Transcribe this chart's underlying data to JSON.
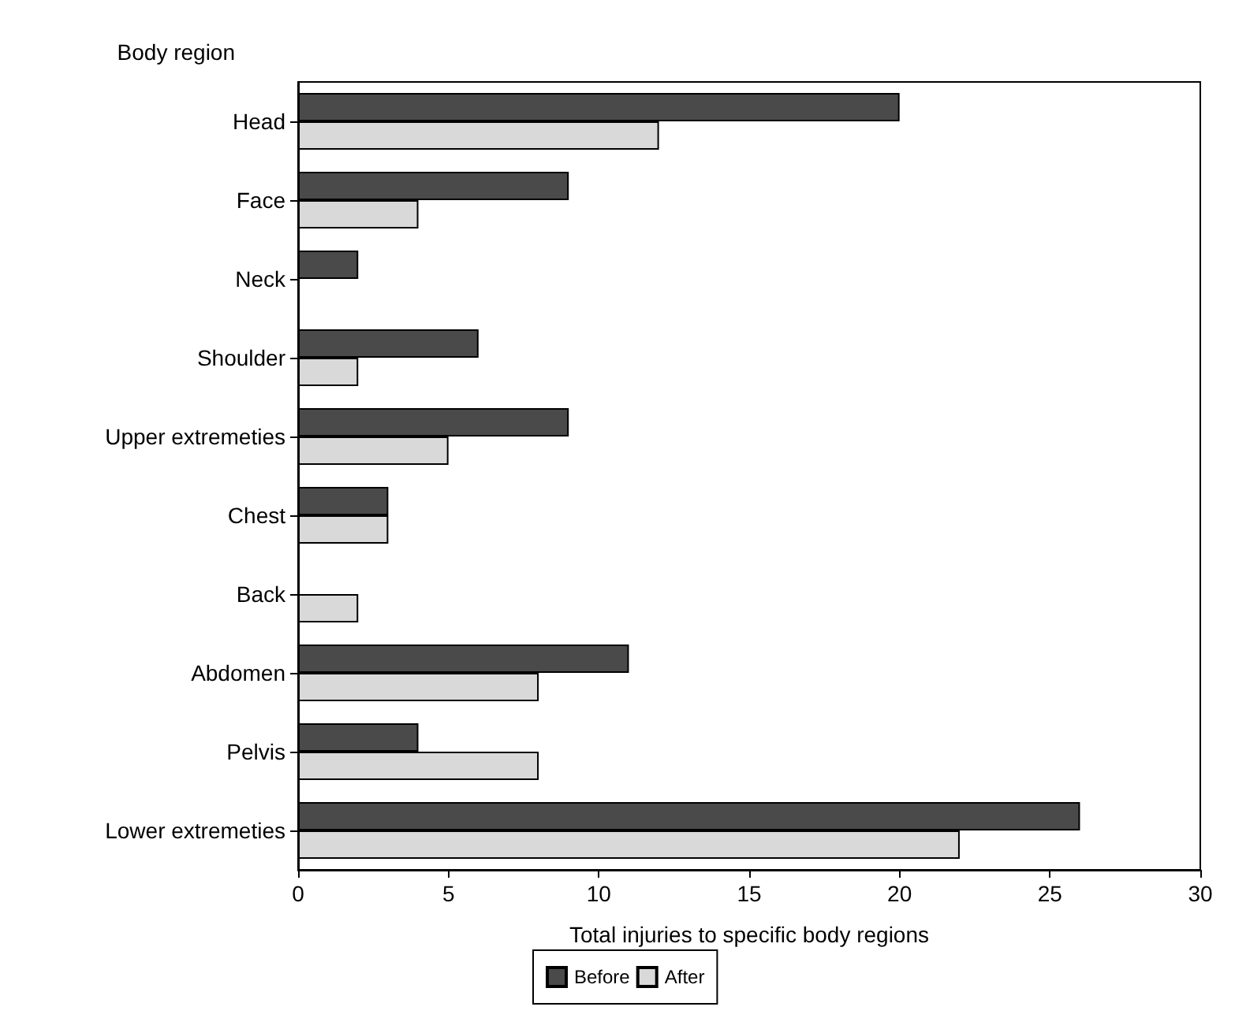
{
  "chart_data": {
    "type": "bar",
    "orientation": "horizontal",
    "ylabel": "Body region",
    "xlabel": "Total injuries to specific body regions",
    "categories": [
      "Head",
      "Face",
      "Neck",
      "Shoulder",
      "Upper extremeties",
      "Chest",
      "Back",
      "Abdomen",
      "Pelvis",
      "Lower extremeties"
    ],
    "series": [
      {
        "name": "Before",
        "color": "#4a4a4a",
        "values": [
          20,
          9,
          2,
          6,
          9,
          3,
          null,
          11,
          4,
          26
        ]
      },
      {
        "name": "After",
        "color": "#d9d9d9",
        "values": [
          12,
          4,
          null,
          2,
          5,
          3,
          2,
          8,
          8,
          22
        ]
      }
    ],
    "xlim": [
      0,
      30
    ],
    "xticks": [
      0,
      5,
      10,
      15,
      20,
      25,
      30
    ],
    "grid": false,
    "legend": "bottom"
  }
}
